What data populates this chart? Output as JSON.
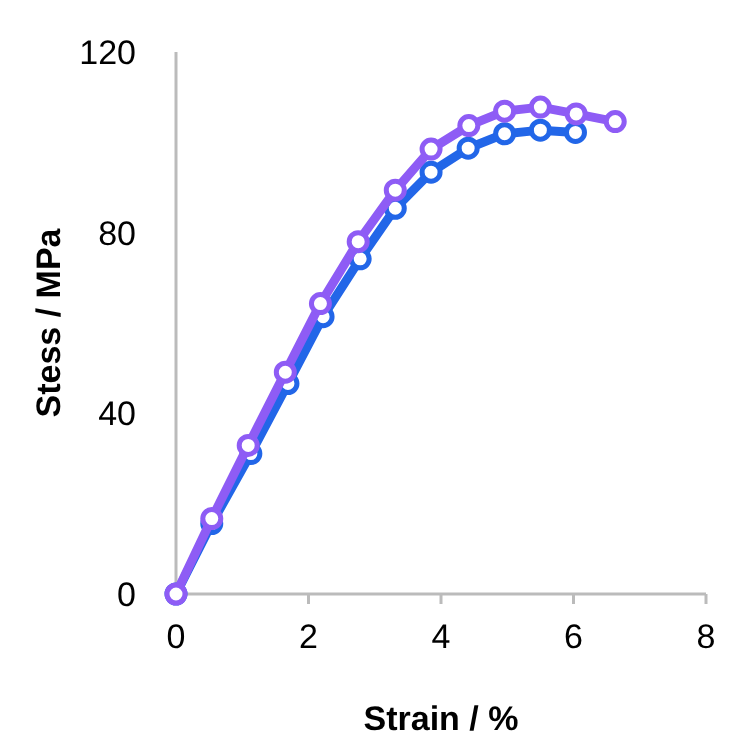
{
  "chart_data": {
    "type": "line",
    "xlabel": "Strain / %",
    "ylabel": "Stess / MPa",
    "xlim": [
      0,
      8
    ],
    "xticks": [
      0,
      2,
      4,
      6,
      8
    ],
    "ylim": [
      0,
      120
    ],
    "yticks": [
      0,
      40,
      80,
      120
    ],
    "marker": "circle",
    "grid": false,
    "series": [
      {
        "color": "#2266e8",
        "x": [
          0,
          0.54,
          1.13,
          1.69,
          2.22,
          2.78,
          3.31,
          3.85,
          4.41,
          4.96,
          5.5,
          6.03
        ],
        "values": [
          0,
          15.6,
          31.1,
          46.6,
          61.4,
          74.2,
          85.4,
          93.4,
          98.7,
          101.9,
          102.7,
          102.2
        ]
      },
      {
        "color": "#8e5cf5",
        "x": [
          0,
          0.54,
          1.09,
          1.65,
          2.18,
          2.75,
          3.31,
          3.85,
          4.42,
          4.96,
          5.5,
          6.04,
          6.63
        ],
        "values": [
          0,
          16.7,
          32.9,
          49.1,
          64.3,
          78.0,
          89.4,
          98.5,
          103.7,
          106.9,
          107.8,
          106.3,
          104.6
        ]
      }
    ]
  }
}
